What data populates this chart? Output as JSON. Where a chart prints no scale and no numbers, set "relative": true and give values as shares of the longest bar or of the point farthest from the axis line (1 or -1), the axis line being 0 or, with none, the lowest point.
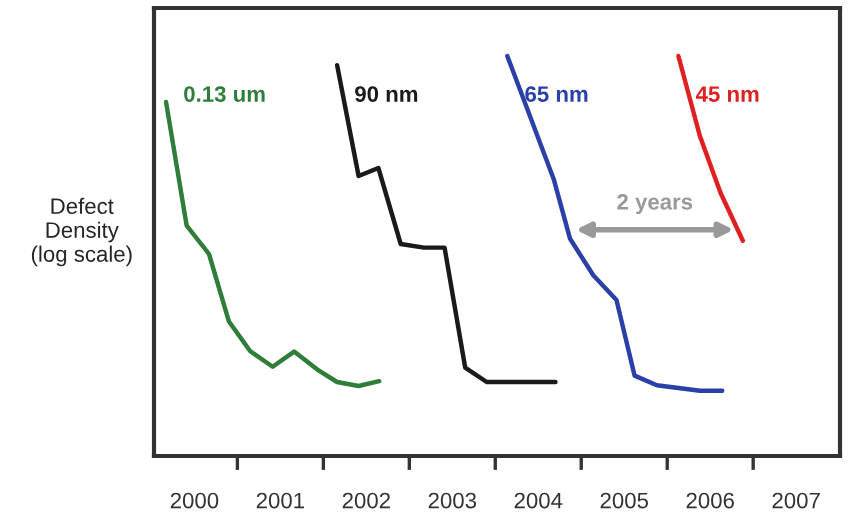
{
  "chart_data": {
    "type": "line",
    "relative": true,
    "ylabel": "Defect\nDensity\n(log scale)",
    "xlim": [
      1999.53,
      2007.51
    ],
    "xticks": [
      {
        "value": 2000,
        "label": "2000"
      },
      {
        "value": 2000.5,
        "label": null
      },
      {
        "value": 2001,
        "label": "2001"
      },
      {
        "value": 2001.5,
        "label": null
      },
      {
        "value": 2002,
        "label": "2002"
      },
      {
        "value": 2002.5,
        "label": null
      },
      {
        "value": 2003,
        "label": "2003"
      },
      {
        "value": 2003.5,
        "label": null
      },
      {
        "value": 2004,
        "label": "2004"
      },
      {
        "value": 2004.5,
        "label": null
      },
      {
        "value": 2005,
        "label": "2005"
      },
      {
        "value": 2005.5,
        "label": null
      },
      {
        "value": 2006,
        "label": "2006"
      },
      {
        "value": 2006.5,
        "label": null
      },
      {
        "value": 2007,
        "label": "2007"
      }
    ],
    "grid": false,
    "legend": false,
    "marker": "none",
    "line_style": "solid",
    "annotations": [
      "2 years"
    ],
    "series": [
      {
        "name": "0.13 um",
        "color": "#2e7d3a",
        "x": [
          1999.67,
          1999.91,
          2000.17,
          2000.4,
          2000.65,
          2000.91,
          2001.16,
          2001.43,
          2001.66,
          2001.91,
          2002.15
        ],
        "values": [
          0.885,
          0.576,
          0.505,
          0.337,
          0.262,
          0.223,
          0.261,
          0.216,
          0.185,
          0.175,
          0.187
        ]
      },
      {
        "name": "90 nm",
        "color": "#1a1a1a",
        "x": [
          2001.66,
          2001.91,
          2002.14,
          2002.4,
          2002.67,
          2002.91,
          2003.15,
          2003.4,
          2004.2
        ],
        "values": [
          0.977,
          0.7,
          0.72,
          0.53,
          0.521,
          0.521,
          0.221,
          0.185,
          0.185
        ]
      },
      {
        "name": "65 nm",
        "color": "#2b3fa8",
        "x": [
          2003.64,
          2004.18,
          2004.37,
          2004.64,
          2004.91,
          2005.12,
          2005.38,
          2005.88,
          2006.14
        ],
        "values": [
          1.0,
          0.692,
          0.543,
          0.452,
          0.39,
          0.201,
          0.177,
          0.163,
          0.163
        ]
      },
      {
        "name": "45 nm",
        "color": "#e02020",
        "x": [
          2005.63,
          2005.88,
          2006.12,
          2006.38
        ],
        "values": [
          1.0,
          0.8,
          0.658,
          0.538
        ]
      }
    ]
  }
}
